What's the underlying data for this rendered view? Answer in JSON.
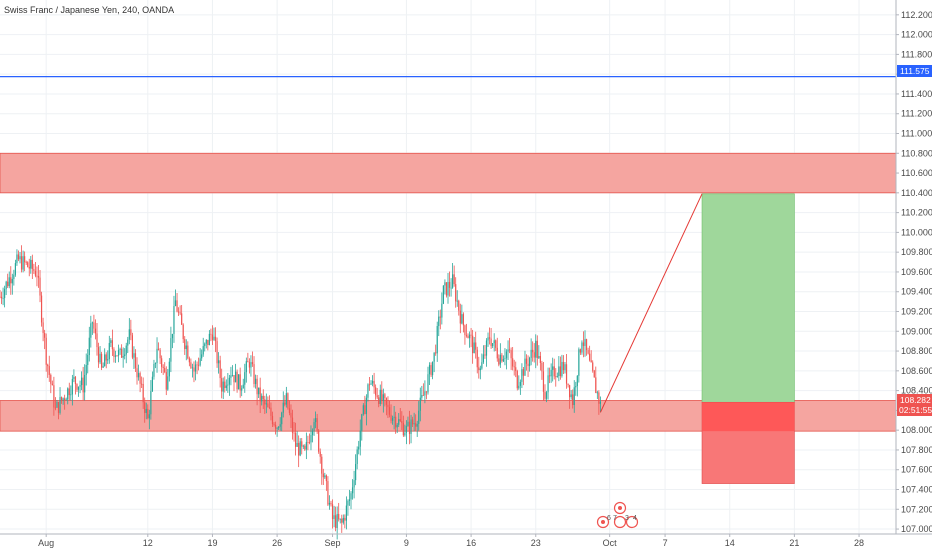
{
  "header": {
    "title": "Swiss Franc / Japanese Yen, 240, OANDA"
  },
  "colors": {
    "up": "#26a69a",
    "down": "#ef5350",
    "zone_fill": "#f4a09b",
    "zone_stroke": "#e5534b",
    "blue_line": "#2962ff",
    "target_fill": "#9fd79b",
    "stop_fill": "#f87777",
    "stop_overlap": "#ff5252",
    "price_badge": "#ef5350",
    "grid": "#eef1f4",
    "axis_text": "#4a4a4a"
  },
  "price_badges": {
    "blue_line_price": "111.575",
    "current_price": "108.282",
    "countdown": "02:51:55"
  },
  "events": [
    "6",
    "7",
    "3",
    "4"
  ],
  "chart_data": {
    "type": "candlestick",
    "title": "Swiss Franc / Japanese Yen, 240, OANDA",
    "x_tick_labels": [
      "Aug",
      "12",
      "19",
      "26",
      "Sep",
      "9",
      "16",
      "23",
      "Oct",
      "7",
      "14",
      "21",
      "28"
    ],
    "x_tick_dates": [
      "2019-08-01",
      "2019-08-12",
      "2019-08-19",
      "2019-08-26",
      "2019-09-01",
      "2019-09-09",
      "2019-09-16",
      "2019-09-23",
      "2019-10-01",
      "2019-10-07",
      "2019-10-14",
      "2019-10-21",
      "2019-10-28"
    ],
    "x_range": [
      "2019-07-27",
      "2019-11-01"
    ],
    "y_range": [
      106.95,
      112.35
    ],
    "y_ticks": [
      107.0,
      107.2,
      107.4,
      107.6,
      107.8,
      108.0,
      108.2,
      108.4,
      108.6,
      108.8,
      109.0,
      109.2,
      109.4,
      109.6,
      109.8,
      110.0,
      110.2,
      110.4,
      110.6,
      110.8,
      111.0,
      111.2,
      111.4,
      111.6,
      111.8,
      112.0,
      112.2
    ],
    "y_tick_labels": [
      "107.000",
      "107.200",
      "107.400",
      "107.600",
      "107.800",
      "108.000",
      "108.200",
      "108.400",
      "108.600",
      "108.800",
      "109.000",
      "109.200",
      "109.400",
      "109.600",
      "109.800",
      "110.000",
      "110.200",
      "110.400",
      "110.600",
      "110.800",
      "111.000",
      "111.200",
      "111.400",
      "111.600",
      "111.800",
      "112.000",
      "112.200"
    ],
    "grid": true,
    "horizontal_lines": [
      {
        "price": 111.575
      }
    ],
    "zones": [
      {
        "from": 110.4,
        "to": 110.8,
        "label": ""
      },
      {
        "from": 107.99,
        "to": 108.3,
        "label": ""
      }
    ],
    "long_position": {
      "start": "2019-10-11",
      "end": "2019-10-21",
      "entry": 108.282,
      "target": 110.39,
      "stop": 107.46
    },
    "projection_line": {
      "from": [
        "2019-09-30",
        108.18
      ],
      "to": [
        "2019-10-11",
        110.39
      ]
    },
    "close_points": [
      [
        "2019-07-27",
        109.35
      ],
      [
        "2019-07-29",
        109.72
      ],
      [
        "2019-07-31",
        109.6
      ],
      [
        "2019-08-01",
        108.75
      ],
      [
        "2019-08-02",
        108.2
      ],
      [
        "2019-08-04",
        108.5
      ],
      [
        "2019-08-05",
        108.45
      ],
      [
        "2019-08-06",
        109.1
      ],
      [
        "2019-08-07",
        108.6
      ],
      [
        "2019-08-08",
        108.85
      ],
      [
        "2019-08-09",
        108.75
      ],
      [
        "2019-08-10",
        108.95
      ],
      [
        "2019-08-12",
        108.1
      ],
      [
        "2019-08-13",
        108.85
      ],
      [
        "2019-08-14",
        108.5
      ],
      [
        "2019-08-15",
        109.3
      ],
      [
        "2019-08-16",
        108.9
      ],
      [
        "2019-08-17",
        108.6
      ],
      [
        "2019-08-19",
        109.0
      ],
      [
        "2019-08-20",
        108.45
      ],
      [
        "2019-08-21",
        108.6
      ],
      [
        "2019-08-22",
        108.45
      ],
      [
        "2019-08-23",
        108.7
      ],
      [
        "2019-08-24",
        108.35
      ],
      [
        "2019-08-26",
        108.05
      ],
      [
        "2019-08-27",
        108.3
      ],
      [
        "2019-08-28",
        107.85
      ],
      [
        "2019-08-29",
        107.75
      ],
      [
        "2019-08-30",
        108.15
      ],
      [
        "2019-08-31",
        107.55
      ],
      [
        "2019-09-01",
        107.1
      ],
      [
        "2019-09-02",
        107.05
      ],
      [
        "2019-09-03",
        107.35
      ],
      [
        "2019-09-04",
        108.0
      ],
      [
        "2019-09-05",
        108.5
      ],
      [
        "2019-09-06",
        108.35
      ],
      [
        "2019-09-07",
        108.2
      ],
      [
        "2019-09-09",
        108.0
      ],
      [
        "2019-09-10",
        108.1
      ],
      [
        "2019-09-11",
        108.4
      ],
      [
        "2019-09-12",
        108.75
      ],
      [
        "2019-09-13",
        109.4
      ],
      [
        "2019-09-14",
        109.5
      ],
      [
        "2019-09-15",
        109.1
      ],
      [
        "2019-09-16",
        108.9
      ],
      [
        "2019-09-17",
        108.6
      ],
      [
        "2019-09-18",
        108.95
      ],
      [
        "2019-09-19",
        108.75
      ],
      [
        "2019-09-20",
        108.8
      ],
      [
        "2019-09-21",
        108.5
      ],
      [
        "2019-09-23",
        108.85
      ],
      [
        "2019-09-24",
        108.4
      ],
      [
        "2019-09-25",
        108.6
      ],
      [
        "2019-09-26",
        108.65
      ],
      [
        "2019-09-27",
        108.3
      ],
      [
        "2019-09-28",
        108.95
      ],
      [
        "2019-09-29",
        108.6
      ],
      [
        "2019-09-30",
        108.25
      ]
    ]
  }
}
